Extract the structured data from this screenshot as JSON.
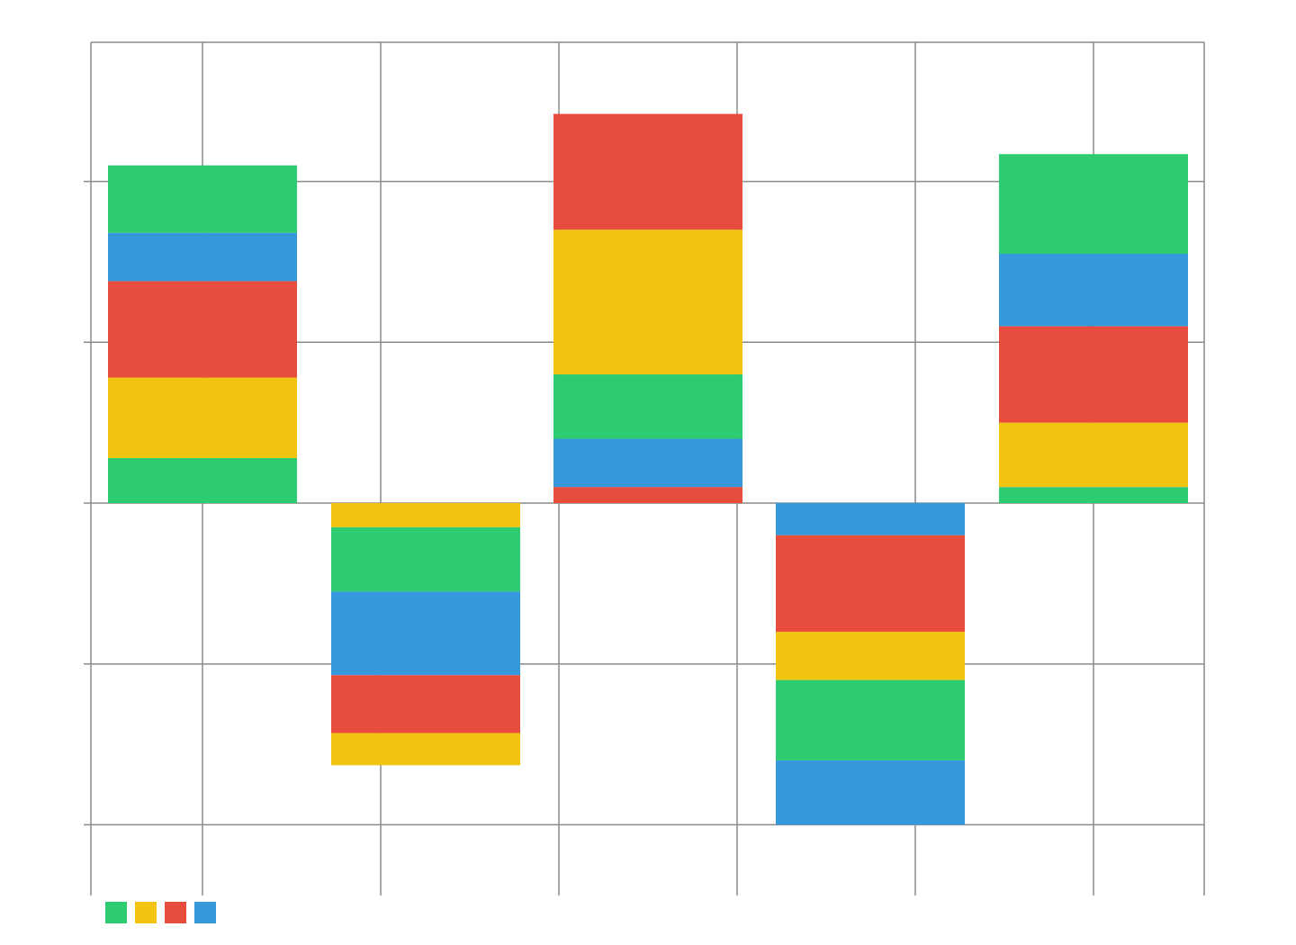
{
  "chart_data": {
    "type": "bar",
    "stacked": true,
    "title": "",
    "xlabel": "",
    "ylabel": "",
    "categories": [
      "",
      "",
      "",
      "",
      ""
    ],
    "ylim": [
      -2.4,
      2.5
    ],
    "grid": true,
    "legend_placement": "bottom-left",
    "bars": [
      {
        "segments": [
          {
            "color": "#2ecc71",
            "value": 0.28
          },
          {
            "color": "#f1c40f",
            "value": 0.5
          },
          {
            "color": "#e74c3c",
            "value": 0.6
          },
          {
            "color": "#3498db",
            "value": 0.3
          },
          {
            "color": "#2ecc71",
            "value": 0.42
          }
        ]
      },
      {
        "segments": [
          {
            "color": "#f1c40f",
            "value": -0.15
          },
          {
            "color": "#2ecc71",
            "value": -0.4
          },
          {
            "color": "#3498db",
            "value": -0.52
          },
          {
            "color": "#e74c3c",
            "value": -0.36
          },
          {
            "color": "#f1c40f",
            "value": -0.2
          }
        ]
      },
      {
        "segments": [
          {
            "color": "#e74c3c",
            "value": 0.1
          },
          {
            "color": "#3498db",
            "value": 0.3
          },
          {
            "color": "#2ecc71",
            "value": 0.4
          },
          {
            "color": "#f1c40f",
            "value": 0.9
          },
          {
            "color": "#e74c3c",
            "value": 0.72
          }
        ]
      },
      {
        "segments": [
          {
            "color": "#3498db",
            "value": -0.2
          },
          {
            "color": "#e74c3c",
            "value": -0.6
          },
          {
            "color": "#f1c40f",
            "value": -0.3
          },
          {
            "color": "#2ecc71",
            "value": -0.5
          },
          {
            "color": "#3498db",
            "value": -0.4
          }
        ]
      },
      {
        "segments": [
          {
            "color": "#2ecc71",
            "value": 0.1
          },
          {
            "color": "#f1c40f",
            "value": 0.4
          },
          {
            "color": "#e74c3c",
            "value": 0.6
          },
          {
            "color": "#3498db",
            "value": 0.45
          },
          {
            "color": "#2ecc71",
            "value": 0.62
          }
        ]
      }
    ],
    "legend": [
      {
        "color": "#2ecc71"
      },
      {
        "color": "#f1c40f"
      },
      {
        "color": "#e74c3c"
      },
      {
        "color": "#3498db"
      }
    ]
  }
}
